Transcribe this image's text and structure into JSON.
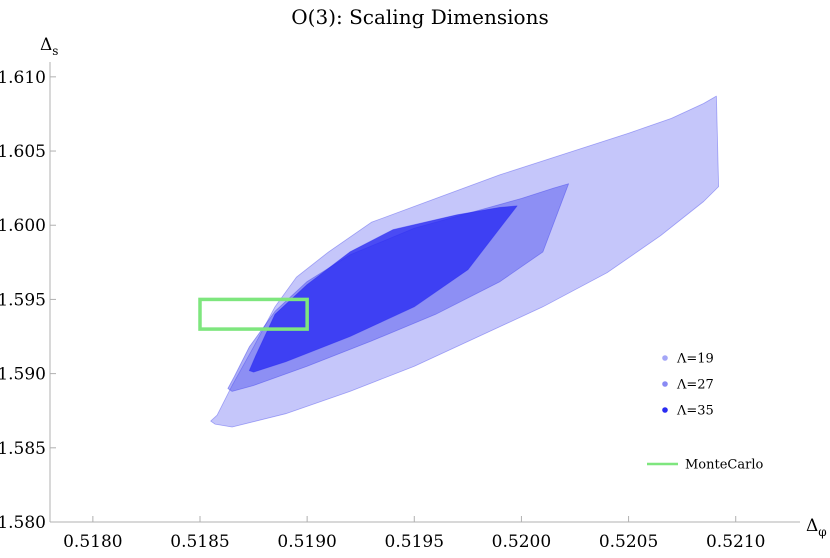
{
  "chart_data": {
    "type": "area",
    "title": "O(3): Scaling Dimensions",
    "xlabel": "Δ",
    "xlabel_sub": "φ",
    "ylabel": "Δ",
    "ylabel_sub": "s",
    "xlim": [
      0.5178,
      0.5213
    ],
    "ylim": [
      1.58,
      1.611
    ],
    "xticks": [
      "0.5180",
      "0.5185",
      "0.5190",
      "0.5195",
      "0.5200",
      "0.5205",
      "0.5210"
    ],
    "yticks": [
      "1.580",
      "1.585",
      "1.590",
      "1.595",
      "1.600",
      "1.605",
      "1.610"
    ],
    "grid": false,
    "legend_position": "right",
    "series": [
      {
        "name": "Λ=19",
        "color": "#5a5cf0",
        "opacity": 0.35,
        "x": [
          0.51855,
          0.51857,
          0.51865,
          0.5189,
          0.5192,
          0.5195,
          0.5198,
          0.5201,
          0.5204,
          0.52065,
          0.52085,
          0.52092,
          0.52091,
          0.52085,
          0.5207,
          0.5205,
          0.5202,
          0.5199,
          0.5196,
          0.5193,
          0.5191,
          0.51895,
          0.51885,
          0.51875,
          0.51865,
          0.51858
        ],
        "y": [
          1.5868,
          1.5866,
          1.5864,
          1.5873,
          1.5888,
          1.5905,
          1.5925,
          1.5945,
          1.5968,
          1.5993,
          1.6016,
          1.6026,
          1.6087,
          1.6082,
          1.6072,
          1.6062,
          1.6048,
          1.6034,
          1.6018,
          1.6002,
          1.5982,
          1.5965,
          1.5945,
          1.5918,
          1.5892,
          1.5872
        ]
      },
      {
        "name": "Λ=27",
        "color": "#4a4cee",
        "opacity": 0.45,
        "x": [
          0.51863,
          0.51865,
          0.51875,
          0.519,
          0.5193,
          0.5196,
          0.5199,
          0.5201,
          0.52022,
          0.52015,
          0.52,
          0.5198,
          0.5195,
          0.5192,
          0.519,
          0.51885,
          0.51873,
          0.51866
        ],
        "y": [
          1.589,
          1.5888,
          1.5892,
          1.5905,
          1.5922,
          1.594,
          1.5962,
          1.5982,
          1.6028,
          1.6025,
          1.6018,
          1.601,
          1.5998,
          1.598,
          1.5962,
          1.5942,
          1.5918,
          1.5898
        ]
      },
      {
        "name": "Λ=35",
        "color": "#2a2cf2",
        "opacity": 0.8,
        "x": [
          0.51873,
          0.51875,
          0.5189,
          0.5192,
          0.5195,
          0.51975,
          0.51998,
          0.5199,
          0.5197,
          0.5194,
          0.5192,
          0.519,
          0.51885,
          0.51876
        ],
        "y": [
          1.5902,
          1.5901,
          1.5908,
          1.5925,
          1.5945,
          1.597,
          1.6013,
          1.6012,
          1.6007,
          1.5997,
          1.5982,
          1.596,
          1.594,
          1.5912
        ]
      }
    ],
    "rectangles": [
      {
        "name": "MonteCarlo",
        "color": "#7ee67e",
        "x": [
          0.5185,
          0.519
        ],
        "y": [
          1.593,
          1.595
        ]
      }
    ]
  }
}
